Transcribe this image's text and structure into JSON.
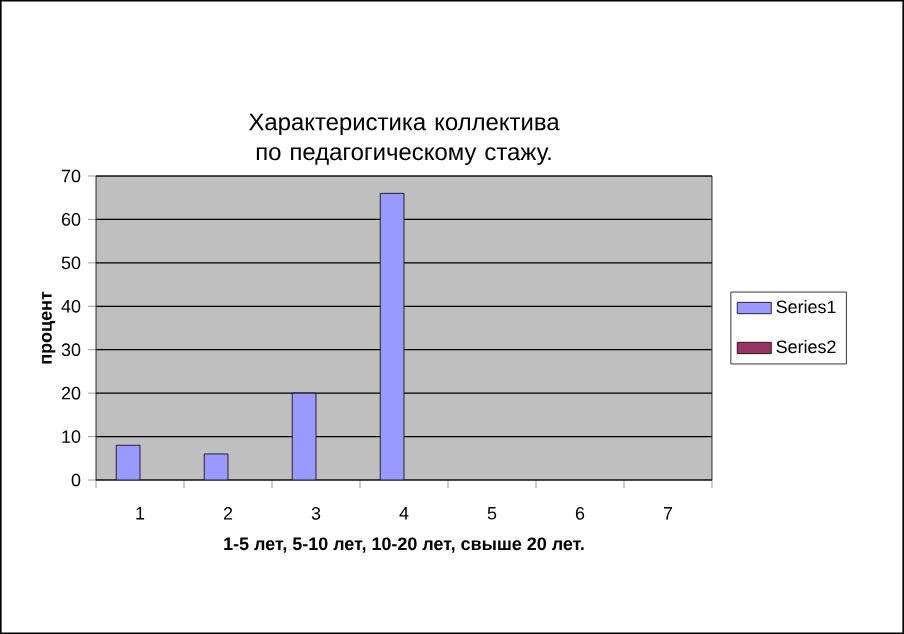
{
  "chart_data": {
    "type": "bar",
    "title": "Характеристика коллектива по педагогическому стажу.",
    "xlabel": "1-5 лет, 5-10 лет, 10-20 лет, свыше 20 лет.",
    "ylabel": "процент",
    "categories": [
      "1",
      "2",
      "3",
      "4",
      "5",
      "6",
      "7"
    ],
    "series": [
      {
        "name": "Series1",
        "color": "#9999ff",
        "values": [
          8,
          6,
          20,
          66,
          null,
          null,
          null
        ]
      },
      {
        "name": "Series2",
        "color": "#993366",
        "values": [
          null,
          null,
          null,
          null,
          null,
          null,
          null
        ]
      }
    ],
    "ylim": [
      0,
      70
    ],
    "yticks": [
      0,
      10,
      20,
      30,
      40,
      50,
      60,
      70
    ],
    "grid": "y",
    "legend": "right"
  }
}
